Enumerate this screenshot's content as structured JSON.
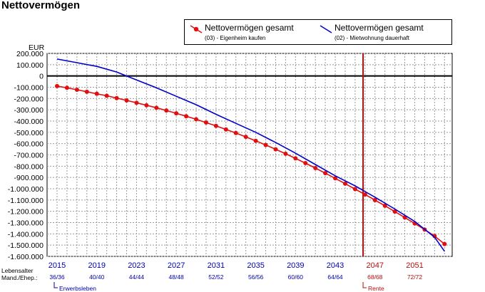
{
  "title": "Nettovermögen",
  "colors": {
    "series1": "#e01010",
    "series2": "#0000cc",
    "marker": "#b01010",
    "accent_dark": "#b01010",
    "axis_blue": "#0000aa"
  },
  "legend": {
    "items": [
      {
        "name": "Nettovermögen gesamt",
        "sub": "(03) - Eigenheim kaufen"
      },
      {
        "name": "Nettovermögen gesamt",
        "sub": "(02) - Mietwohnung dauerhaft"
      }
    ]
  },
  "chart_data": {
    "type": "line",
    "title": "Nettovermögen",
    "ylabel": "EUR",
    "ylim": [
      -1600000,
      200000
    ],
    "xlim": [
      2015,
      2054
    ],
    "grid": true,
    "legend_position": "top-right",
    "y_ticks": [
      "200.000",
      "100.000",
      "0",
      "-100.000",
      "-200.000",
      "-300.000",
      "-400.000",
      "-500.000",
      "-600.000",
      "-700.000",
      "-800.000",
      "-900.000",
      "-1.000.000",
      "-1.100.000",
      "-1.200.000",
      "-1.300.000",
      "-1.400.000",
      "-1.500.000",
      "-1.600.000"
    ],
    "x_ticks": [
      {
        "year": 2015,
        "label": "2015",
        "age": "36/36",
        "highlight": false
      },
      {
        "year": 2019,
        "label": "2019",
        "age": "40/40",
        "highlight": false
      },
      {
        "year": 2023,
        "label": "2023",
        "age": "44/44",
        "highlight": false
      },
      {
        "year": 2027,
        "label": "2027",
        "age": "48/48",
        "highlight": false
      },
      {
        "year": 2031,
        "label": "2031",
        "age": "52/52",
        "highlight": false
      },
      {
        "year": 2035,
        "label": "2035",
        "age": "56/56",
        "highlight": false
      },
      {
        "year": 2039,
        "label": "2039",
        "age": "60/60",
        "highlight": false
      },
      {
        "year": 2043,
        "label": "2043",
        "age": "64/64",
        "highlight": false
      },
      {
        "year": 2047,
        "label": "2047",
        "age": "68/68",
        "highlight": true
      },
      {
        "year": 2051,
        "label": "2051",
        "age": "72/72",
        "highlight": true
      }
    ],
    "row_labels": [
      "Lebensalter",
      "Mand./Ehep.:"
    ],
    "markers": [
      {
        "label": "Erwerbsleben",
        "year": 2015
      },
      {
        "label": "Rente",
        "year": 2045.8
      }
    ],
    "series": [
      {
        "name": "Nettovermögen gesamt",
        "x": [
          2015,
          2016,
          2017,
          2018,
          2019,
          2020,
          2021,
          2022,
          2023,
          2024,
          2025,
          2026,
          2027,
          2028,
          2029,
          2030,
          2031,
          2032,
          2033,
          2034,
          2035,
          2036,
          2037,
          2038,
          2039,
          2040,
          2041,
          2042,
          2043,
          2044,
          2045,
          2046,
          2047,
          2048,
          2049,
          2050,
          2051,
          2052,
          2053,
          2054
        ],
        "values": [
          -90000,
          -105000,
          -122000,
          -140000,
          -158000,
          -176000,
          -196000,
          -217000,
          -238000,
          -260000,
          -282000,
          -306000,
          -331000,
          -357000,
          -384000,
          -413000,
          -443000,
          -474000,
          -506000,
          -540000,
          -575000,
          -612000,
          -650000,
          -690000,
          -731000,
          -773000,
          -817000,
          -862000,
          -908000,
          -955000,
          -1003000,
          -1051000,
          -1101000,
          -1151000,
          -1203000,
          -1255000,
          -1308000,
          -1362000,
          -1420000,
          -1490000
        ],
        "markers": true
      },
      {
        "name": "Nettovermögen gesamt",
        "x": [
          2015,
          2017,
          2019,
          2021,
          2023,
          2025,
          2027,
          2029,
          2031,
          2033,
          2035,
          2037,
          2039,
          2041,
          2043,
          2045,
          2047,
          2049,
          2051,
          2053,
          2054
        ],
        "values": [
          150000,
          118000,
          85000,
          35000,
          -35000,
          -105000,
          -180000,
          -255000,
          -340000,
          -420000,
          -500000,
          -590000,
          -685000,
          -785000,
          -885000,
          -975000,
          -1075000,
          -1180000,
          -1290000,
          -1430000,
          -1555000
        ],
        "markers": false
      }
    ]
  }
}
